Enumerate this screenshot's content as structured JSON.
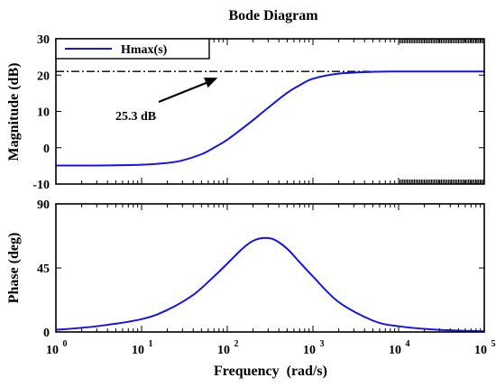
{
  "chart_data": [
    {
      "type": "line",
      "title": "Bode Diagram",
      "ylabel": "Magnitude (dB)",
      "xscale": "log",
      "xlim": [
        1,
        100000
      ],
      "ylim": [
        -10,
        30
      ],
      "yticks": [
        "-10",
        "0",
        "10",
        "20",
        "30"
      ],
      "legend": {
        "position": "top-left",
        "entries": [
          "Hmax(s)"
        ]
      },
      "colors": {
        "series": "#1414e6",
        "reference": "#000000"
      },
      "series": [
        {
          "name": "Hmax(s)",
          "x": [
            1,
            3,
            10,
            20,
            30,
            50,
            70,
            100,
            150,
            200,
            300,
            500,
            700,
            1000,
            2000,
            5000,
            10000,
            100000
          ],
          "y": [
            -4.9,
            -4.9,
            -4.7,
            -4.2,
            -3.5,
            -1.8,
            0.0,
            2.2,
            5.3,
            7.6,
            11.0,
            15.1,
            17.2,
            19.0,
            20.4,
            20.9,
            21.0,
            21.0
          ]
        }
      ],
      "reference_line": {
        "y": 21,
        "style": "dash-dot"
      },
      "annotation": {
        "text": "25.3 dB",
        "arrow_to": [
          70,
          21
        ]
      }
    },
    {
      "type": "line",
      "xlabel": "Frequency  (rad/s)",
      "ylabel": "Phase (deg)",
      "xscale": "log",
      "xlim": [
        1,
        100000
      ],
      "ylim": [
        0,
        90
      ],
      "yticks": [
        "0",
        "45",
        "90"
      ],
      "xticks": [
        {
          "base": "10",
          "exp": "0"
        },
        {
          "base": "10",
          "exp": "1"
        },
        {
          "base": "10",
          "exp": "2"
        },
        {
          "base": "10",
          "exp": "3"
        },
        {
          "base": "10",
          "exp": "4"
        },
        {
          "base": "10",
          "exp": "5"
        }
      ],
      "series": [
        {
          "name": "Hmax(s)",
          "x": [
            1,
            3,
            10,
            20,
            40,
            70,
            100,
            150,
            200,
            260,
            350,
            500,
            700,
            1000,
            2000,
            5000,
            10000,
            30000,
            100000
          ],
          "y": [
            1.5,
            4,
            9,
            15.5,
            26,
            39,
            48,
            58.5,
            64,
            66,
            65,
            58.5,
            49,
            39,
            21,
            8,
            4,
            1.5,
            0.5
          ]
        }
      ]
    }
  ]
}
